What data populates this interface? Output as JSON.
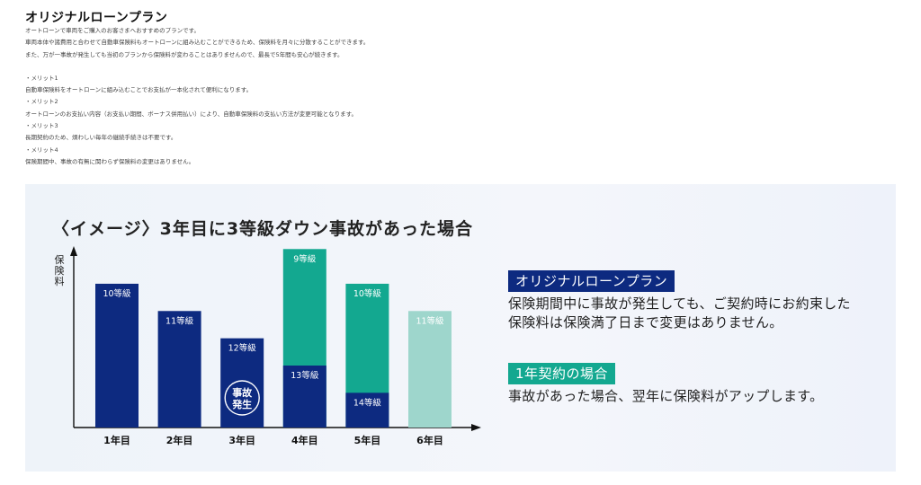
{
  "title": "オリジナルローンプラン",
  "intro": {
    "lines": [
      "オートローンで車両をご購入のお客さまへおすすめのプランです。",
      "車両本体や諸費用と合わせて自動車保険料もオートローンに組み込むことができるため、保険料を月々に分散することができます。",
      "また、万が一事故が発生しても当初のプランから保険料が変わることはありませんので、最長で5年間も安心が続きます。"
    ],
    "merits": [
      {
        "label": "・メリット1",
        "text": "自動車保険料をオートローンに組み込むことでお支払が一本化されて便利になります。"
      },
      {
        "label": "・メリット2",
        "text": "オートローンのお支払い内容（お支払い期間、ボーナス併用払い）により、自動車保険料の支払い方法が変更可能となります。"
      },
      {
        "label": "・メリット3",
        "text": "長期契約のため、煩わしい毎年の継続手続きは不要です。"
      },
      {
        "label": "・メリット4",
        "text": "保険期間中、事故の有無に関わらず保険料の変更はありません。"
      }
    ]
  },
  "illustration": {
    "title": "〈イメージ〉3年目に3等級ダウン事故があった場合",
    "ylabel": "保険料",
    "accident_badge": "事故発生",
    "legend": [
      {
        "tag": "オリジナルローンプラン",
        "color": "#0d2a80",
        "desc": [
          "保険期間中に事故が発生しても、ご契約時にお約束した",
          "保険料は保険満了日まで変更はありません。"
        ]
      },
      {
        "tag": "1年契約の場合",
        "color": "#13a890",
        "desc": [
          "事故があった場合、翌年に保険料がアップします。"
        ]
      }
    ]
  },
  "chart_data": {
    "type": "bar",
    "categories": [
      "1年目",
      "2年目",
      "3年目",
      "4年目",
      "5年目",
      "6年目"
    ],
    "ylabel": "保険料",
    "series": [
      {
        "name": "オリジナルローンプラン",
        "color": "#0d2a80",
        "values": [
          0.58,
          0.47,
          0.36,
          0.25,
          0.14,
          null
        ],
        "labels": [
          "10等級",
          "11等級",
          "12等級",
          "13等級",
          "14等級",
          ""
        ]
      },
      {
        "name": "1年契約の場合",
        "color": "#13a890",
        "values": [
          null,
          null,
          null,
          0.72,
          0.58,
          0.47
        ],
        "labels": [
          "",
          "",
          "",
          "9等級",
          "10等級",
          "11等級"
        ]
      }
    ],
    "accident_year": "3年目"
  }
}
